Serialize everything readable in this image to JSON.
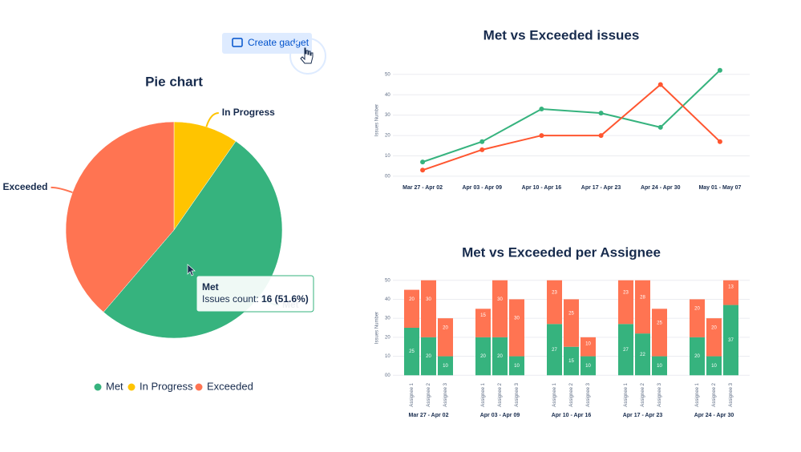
{
  "toolbar": {
    "button": "Create gadget"
  },
  "chart_data": [
    {
      "type": "pie",
      "title": "Pie chart",
      "categories": [
        "Met",
        "In Progress",
        "Exceeded"
      ],
      "values": [
        16,
        3,
        12
      ],
      "colors": [
        "#36b37e",
        "#ffc400",
        "#ff7452"
      ],
      "legend": "bottom",
      "tooltip": {
        "name": "Met",
        "label": "Issues count:",
        "value": "16 (51.6%)"
      }
    },
    {
      "type": "line",
      "title": "Met vs Exceeded issues",
      "y_label": "Issues Number",
      "categories": [
        "Mar 27 - Apr 02",
        "Apr 03 - Apr 09",
        "Apr 10 - Apr 16",
        "Apr 17 - Apr 23",
        "Apr 24 - Apr 30",
        "May 01 - May 07"
      ],
      "series": [
        {
          "color": "#36b37e",
          "values": [
            7,
            17,
            33,
            31,
            24,
            52
          ]
        },
        {
          "color": "#ff5630",
          "values": [
            3,
            13,
            20,
            20,
            45,
            17
          ]
        }
      ],
      "ylim": [
        -2,
        57
      ],
      "yticks": [
        {
          "value": 0,
          "label": "00"
        },
        10,
        20,
        30,
        40,
        50
      ],
      "grid": true
    },
    {
      "type": "grouped-stacked-bar",
      "title": "Met vs Exceeded per Assignee",
      "y_label": "Issues Number",
      "groups": [
        "Mar 27 - Apr 02",
        "Apr 03 - Apr 09",
        "Apr 10 - Apr 16",
        "Apr 17 - Apr 23",
        "Apr 24 - Apr 30"
      ],
      "categories": [
        "Assignee 1",
        "Assignee 2",
        "Assignee 3",
        "Assignee 1",
        "Assignee 2",
        "Assignee 3",
        "Assignee 1",
        "Assignee 2",
        "Assignee 3",
        "Assignee 1",
        "Assignee 2",
        "Assignee 3",
        "Assignee 1",
        "Assignee 2",
        "Assignee 3"
      ],
      "series": [
        {
          "color": "#36b37e",
          "values": [
            25,
            20,
            10,
            20,
            20,
            10,
            27,
            15,
            10,
            27,
            22,
            10,
            20,
            10,
            37
          ]
        },
        {
          "color": "#ff7452",
          "values": [
            20,
            30,
            20,
            15,
            30,
            30,
            23,
            25,
            10,
            23,
            28,
            25,
            20,
            20,
            13
          ]
        }
      ],
      "ylim": [
        -2,
        52
      ],
      "yticks": [
        {
          "value": 0,
          "label": "00"
        },
        10,
        20,
        30,
        40,
        50
      ],
      "grid": true
    }
  ]
}
